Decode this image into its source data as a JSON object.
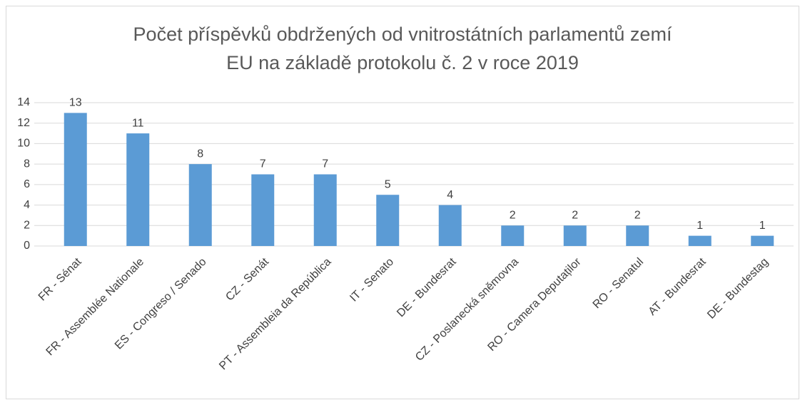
{
  "chart_data": {
    "type": "bar",
    "title": "Počet příspěvků obdržených od vnitrostátních parlamentů zemí EU na základě protokolu č. 2 v roce 2019",
    "categories": [
      "FR - Sénat",
      "FR - Assemblée Nationale",
      "ES - Congreso / Senado",
      "CZ - Senát",
      "PT - Assembleia da República",
      "IT - Senato",
      "DE - Bundesrat",
      "CZ - Poslanecká sněmovna",
      "RO - Camera Deputaților",
      "RO - Senatul",
      "AT - Bundesrat",
      "DE - Bundestag"
    ],
    "values": [
      13,
      11,
      8,
      7,
      7,
      5,
      4,
      2,
      2,
      2,
      1,
      1
    ],
    "color": "#5b9bd5",
    "ylim": [
      0,
      14
    ],
    "yticks": [
      0,
      2,
      4,
      6,
      8,
      10,
      12,
      14
    ],
    "grid": true
  }
}
